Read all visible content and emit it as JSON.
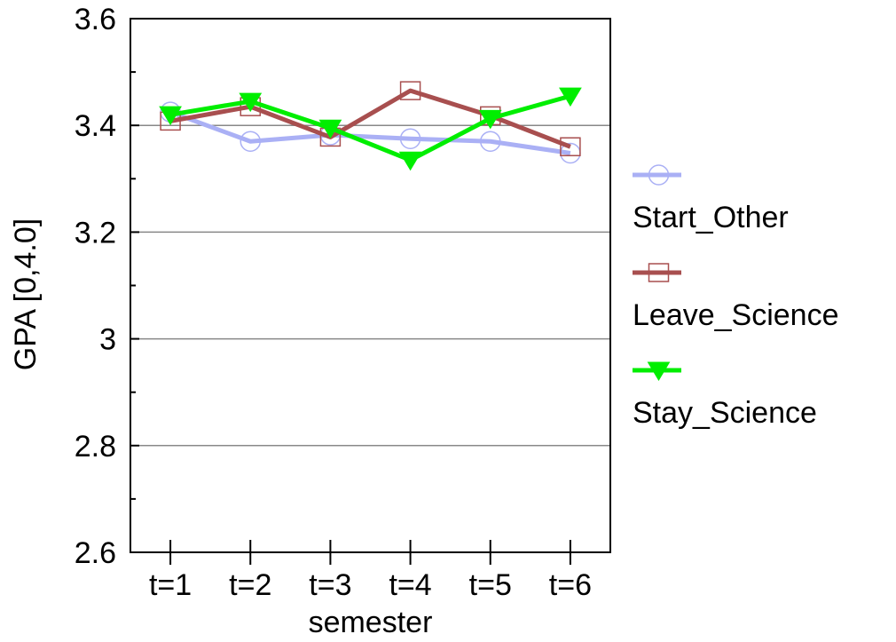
{
  "chart_data": {
    "type": "line",
    "categories": [
      "t=1",
      "t=2",
      "t=3",
      "t=4",
      "t=5",
      "t=6"
    ],
    "xlabel": "semester",
    "ylabel": "GPA  [0,4.0]",
    "ylim": [
      2.6,
      3.6
    ],
    "yticks": [
      "2.6",
      "2.8",
      "3",
      "3.2",
      "3.4",
      "3.6"
    ],
    "ytick_values": [
      2.6,
      2.8,
      3.0,
      3.2,
      3.4,
      3.6
    ],
    "grid": true,
    "legend_position": "right",
    "series": [
      {
        "name": "Start_Other",
        "color": "#aab0f5",
        "marker": "circle",
        "values": [
          3.425,
          3.37,
          3.382,
          3.375,
          3.37,
          3.348
        ]
      },
      {
        "name": "Leave_Science",
        "color": "#a84f4f",
        "marker": "square",
        "values": [
          3.408,
          3.435,
          3.378,
          3.465,
          3.418,
          3.36
        ]
      },
      {
        "name": "Stay_Science",
        "color": "#00ee00",
        "marker": "triangle-down",
        "values": [
          3.42,
          3.445,
          3.395,
          3.335,
          3.413,
          3.455
        ]
      }
    ]
  }
}
